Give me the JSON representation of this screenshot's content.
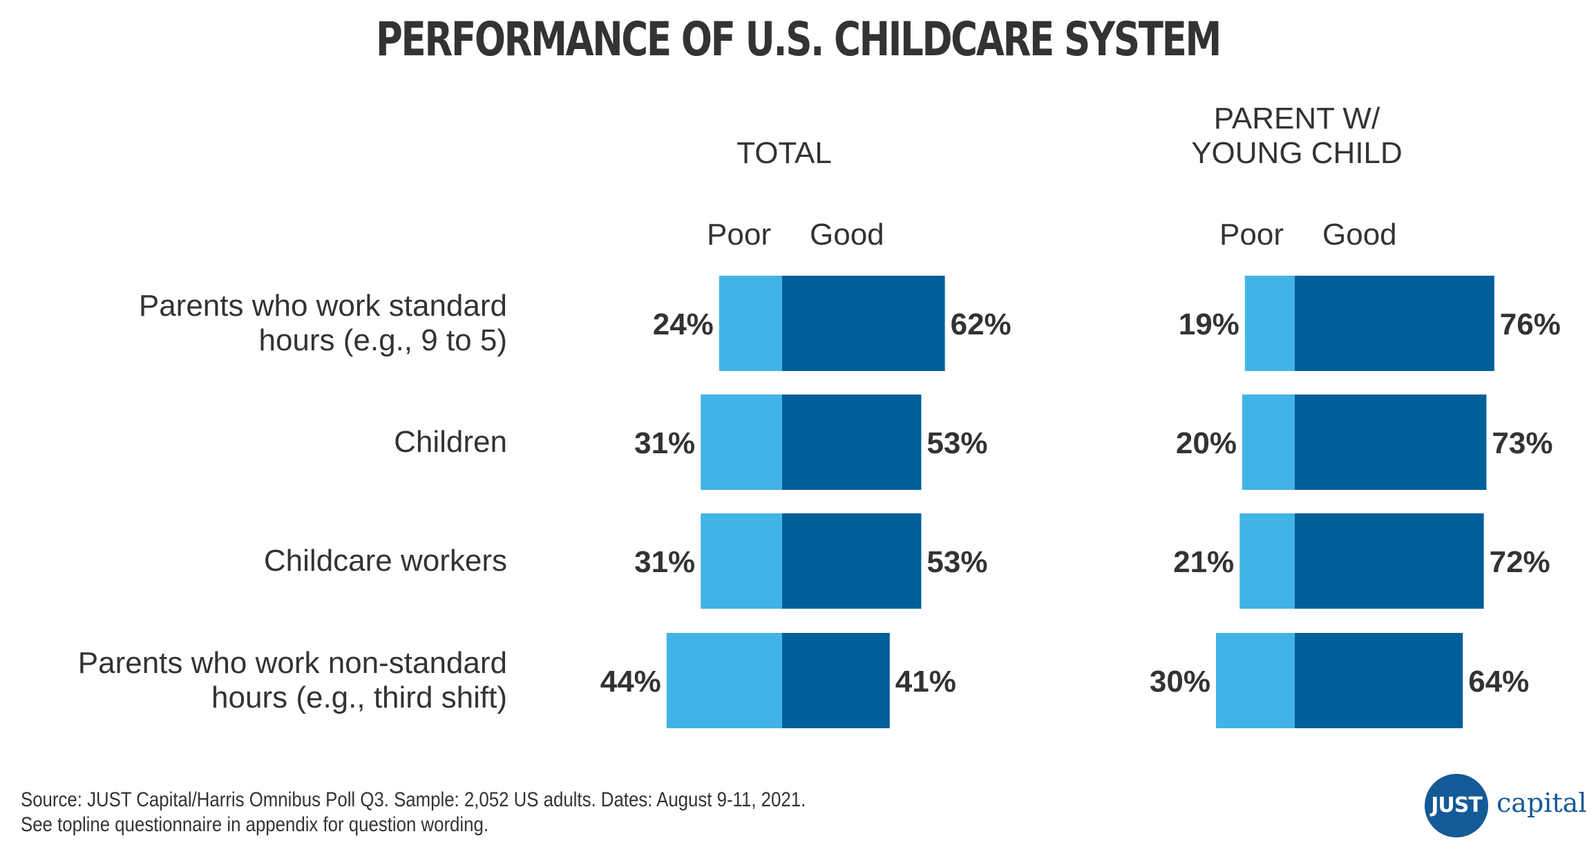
{
  "title": "PERFORMANCE OF U.S. CHILDCARE SYSTEM",
  "colors": {
    "poor": "#42b3e5",
    "good": "#005f9b",
    "text": "#333333",
    "brand": "#145a96"
  },
  "chart_data": {
    "type": "bar",
    "subtype": "diverging-stacked-horizontal",
    "categories": [
      [
        "Parents who work standard",
        "hours (e.g., 9 to 5)"
      ],
      [
        "Children"
      ],
      [
        "Childcare workers"
      ],
      [
        "Parents who work non-standard",
        "hours (e.g., third shift)"
      ]
    ],
    "panels": [
      {
        "header": [
          "TOTAL"
        ],
        "series": [
          {
            "name": "Poor",
            "values": [
              24,
              31,
              31,
              44
            ],
            "labels": [
              "24%",
              "31%",
              "31%",
              "44%"
            ]
          },
          {
            "name": "Good",
            "values": [
              62,
              53,
              53,
              41
            ],
            "labels": [
              "62%",
              "53%",
              "53%",
              "41%"
            ]
          }
        ]
      },
      {
        "header": [
          "PARENT W/",
          "YOUNG CHILD"
        ],
        "series": [
          {
            "name": "Poor",
            "values": [
              19,
              20,
              21,
              30
            ],
            "labels": [
              "19%",
              "20%",
              "21%",
              "30%"
            ]
          },
          {
            "name": "Good",
            "values": [
              76,
              73,
              72,
              64
            ],
            "labels": [
              "76%",
              "73%",
              "72%",
              "64%"
            ]
          }
        ]
      }
    ],
    "xlim": [
      0,
      100
    ],
    "legend_placement": "above each panel"
  },
  "footer": {
    "line1": "Source: JUST Capital/Harris Omnibus Poll Q3. Sample: 2,052 US adults. Dates: August 9-11, 2021.",
    "line2": "See topline questionnaire in appendix for question wording."
  },
  "logo": {
    "mark": "JUST",
    "word": "capital"
  }
}
